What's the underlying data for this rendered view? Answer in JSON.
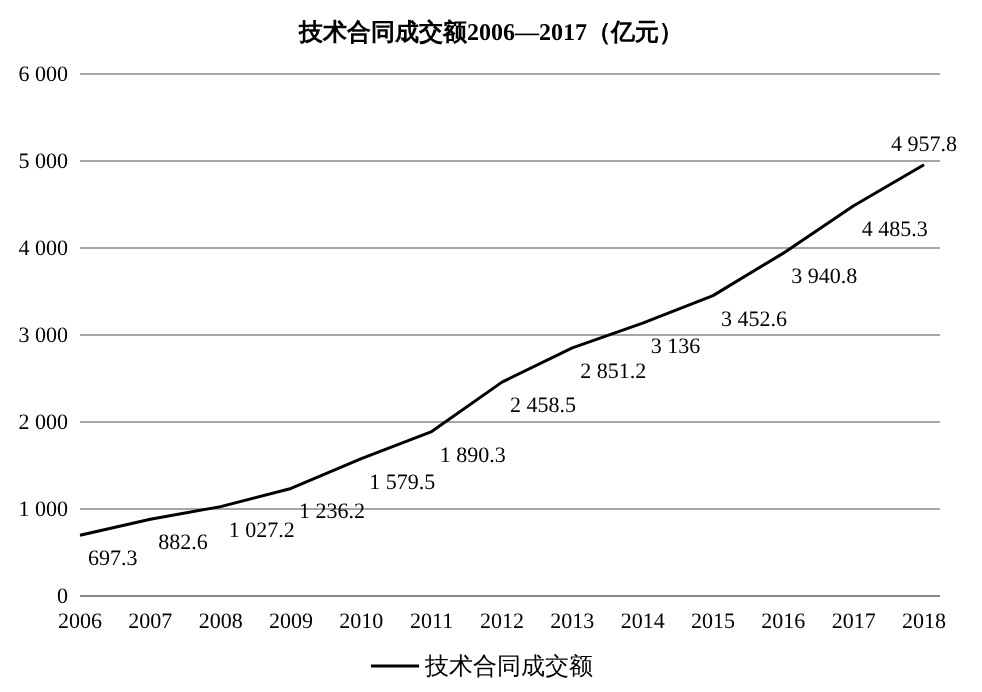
{
  "chart_data": {
    "type": "line",
    "title": "技术合同成交额2006—2017（亿元）",
    "categories": [
      "2006",
      "2007",
      "2008",
      "2009",
      "2010",
      "2011",
      "2012",
      "2013",
      "2014",
      "2015",
      "2016",
      "2017",
      "2018"
    ],
    "series": [
      {
        "name": "技术合同成交额",
        "color": "#000000",
        "values": [
          697.3,
          882.6,
          1027.2,
          1236.2,
          1579.5,
          1890.3,
          2458.5,
          2851.2,
          3136,
          3452.6,
          3940.8,
          4485.3,
          4957.8
        ],
        "value_labels": [
          "697.3",
          "882.6",
          "1 027.2",
          "1 236.2",
          "1 579.5",
          "1 890.3",
          "2 458.5",
          "2 851.2",
          "3 136",
          "3 452.6",
          "3 940.8",
          "4 485.3",
          "4 957.8"
        ]
      }
    ],
    "ylim": [
      0,
      6000
    ],
    "yticks": [
      {
        "value": 0,
        "label": "0"
      },
      {
        "value": 1000,
        "label": "1 000"
      },
      {
        "value": 2000,
        "label": "2 000"
      },
      {
        "value": 3000,
        "label": "3 000"
      },
      {
        "value": 4000,
        "label": "4 000"
      },
      {
        "value": 5000,
        "label": "5 000"
      },
      {
        "value": 6000,
        "label": "6 000"
      }
    ],
    "grid": "y",
    "legend": "bottom",
    "marker": "none",
    "line_style": "solid"
  }
}
